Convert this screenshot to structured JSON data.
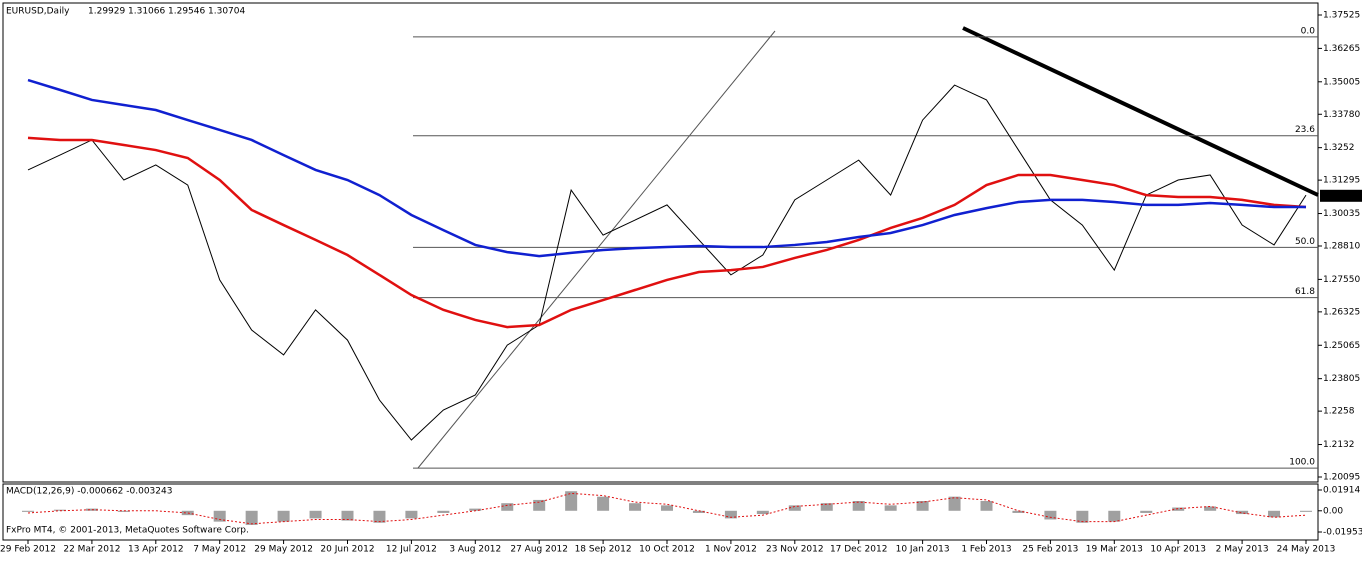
{
  "header": {
    "symbol": "EURUSD,Daily",
    "ohlc": [
      1.29929,
      1.31066,
      1.29546,
      1.30704
    ]
  },
  "chart_data": [
    {
      "type": "line",
      "categories": [
        "29 Feb 2012",
        null,
        "22 Mar 2012",
        null,
        "13 Apr 2012",
        null,
        "7 May 2012",
        null,
        "29 May 2012",
        null,
        "20 Jun 2012",
        null,
        "12 Jul 2012",
        null,
        "3 Aug 2012",
        null,
        "27 Aug 2012",
        null,
        "18 Sep 2012",
        null,
        "10 Oct 2012",
        null,
        "1 Nov 2012",
        null,
        "23 Nov 2012",
        null,
        "17 Dec 2012",
        null,
        "10 Jan 2013",
        null,
        "1 Feb 2013",
        null,
        "25 Feb 2013",
        null,
        "19 Mar 2013",
        null,
        "10 Apr 2013",
        null,
        "2 May 2013",
        null,
        "24 May 2013"
      ],
      "series": [
        {
          "color": "#000000",
          "values": [
            1.3168,
            1.3224,
            1.3281,
            1.313,
            1.3187,
            1.3111,
            1.2753,
            1.2564,
            1.247,
            1.264,
            1.2526,
            1.23,
            1.2149,
            1.2262,
            1.2319,
            1.2507,
            1.2583,
            1.3092,
            1.2922,
            1.2979,
            1.3036,
            1.2904,
            1.2772,
            1.2847,
            1.3055,
            1.313,
            1.3205,
            1.3073,
            1.3356,
            1.3488,
            1.3432,
            1.3243,
            1.3055,
            1.296,
            1.279,
            1.3073,
            1.313,
            1.3149,
            1.296,
            1.2885,
            1.3073
          ]
        },
        {
          "color": "#e01010",
          "values": [
            1.3289,
            1.3281,
            1.3281,
            1.3262,
            1.3243,
            1.3213,
            1.313,
            1.3017,
            1.296,
            1.2904,
            1.2847,
            1.2772,
            1.2696,
            1.264,
            1.2602,
            1.2575,
            1.2583,
            1.264,
            1.2677,
            1.2715,
            1.2753,
            1.2783,
            1.279,
            1.2802,
            1.2836,
            1.2866,
            1.2904,
            1.2949,
            1.2987,
            1.3036,
            1.3111,
            1.3149,
            1.3149,
            1.313,
            1.3111,
            1.3073,
            1.3066,
            1.3066,
            1.3055,
            1.3036,
            1.3028
          ]
        },
        {
          "color": "#1020d0",
          "values": [
            1.3507,
            1.347,
            1.3432,
            1.3413,
            1.3394,
            1.3356,
            1.3319,
            1.3281,
            1.3224,
            1.3168,
            1.313,
            1.3073,
            1.2998,
            1.2941,
            1.2885,
            1.2858,
            1.2843,
            1.2855,
            1.2866,
            1.2873,
            1.2877,
            1.2881,
            1.2877,
            1.2877,
            1.2885,
            1.2896,
            1.2915,
            1.293,
            1.296,
            1.2998,
            1.3024,
            1.3047,
            1.3055,
            1.3055,
            1.3047,
            1.3036,
            1.3036,
            1.3043,
            1.3036,
            1.3028,
            1.3028
          ]
        }
      ],
      "ylim": [
        1.20095,
        1.37525
      ],
      "yticks": [
        1.37525,
        1.36265,
        1.35005,
        {
          "value": 1.3378,
          "label": "1.33780"
        },
        1.3252,
        1.31295,
        1.30035,
        {
          "value": 1.2881,
          "label": "1.28810"
        },
        {
          "value": 1.2755,
          "label": "1.27550"
        },
        1.26325,
        1.25065,
        1.23805,
        1.2258,
        1.2132,
        1.20095
      ],
      "last_price": 1.30704,
      "fib_levels": [
        {
          "label": "0.0",
          "value": 1.367
        },
        {
          "label": "23.6",
          "value": 1.3297
        },
        {
          "label": "50.0",
          "value": 1.2876
        },
        {
          "label": "61.8",
          "value": 1.2686
        },
        {
          "label": "100.0",
          "value": 1.2043
        }
      ]
    },
    {
      "type": "macd",
      "title": "MACD(12,26,9) -0.000662 -0.003243",
      "series": [
        {
          "color": "#a0a0a0",
          "values": [
            -0.001,
            0.001,
            0.002,
            -0.001,
            0.0,
            -0.004,
            -0.01,
            -0.013,
            -0.01,
            -0.007,
            -0.009,
            -0.011,
            -0.007,
            -0.002,
            0.002,
            0.007,
            0.01,
            0.018,
            0.013,
            0.007,
            0.005,
            -0.002,
            -0.007,
            -0.003,
            0.005,
            0.007,
            0.009,
            0.005,
            0.009,
            0.013,
            0.009,
            -0.002,
            -0.008,
            -0.011,
            -0.01,
            -0.002,
            0.003,
            0.004,
            -0.003,
            -0.006,
            -0.001
          ]
        },
        {
          "color": "#e01010",
          "values": [
            -0.002,
            0.0,
            0.001,
            0.0,
            0.0,
            -0.002,
            -0.008,
            -0.012,
            -0.01,
            -0.008,
            -0.008,
            -0.01,
            -0.008,
            -0.004,
            0.0,
            0.005,
            0.008,
            0.016,
            0.014,
            0.008,
            0.006,
            0.0,
            -0.006,
            -0.004,
            0.004,
            0.006,
            0.008,
            0.006,
            0.008,
            0.012,
            0.01,
            0.0,
            -0.006,
            -0.01,
            -0.01,
            -0.004,
            0.002,
            0.004,
            -0.002,
            -0.006,
            -0.004
          ]
        }
      ],
      "ylim": [
        -0.01953,
        0.01914
      ],
      "yticks": [
        0.01914,
        {
          "value": 0,
          "label": "0.00"
        },
        -0.01953
      ]
    }
  ],
  "footer": "FxPro MT4, © 2001-2013, MetaQuotes Software Corp."
}
